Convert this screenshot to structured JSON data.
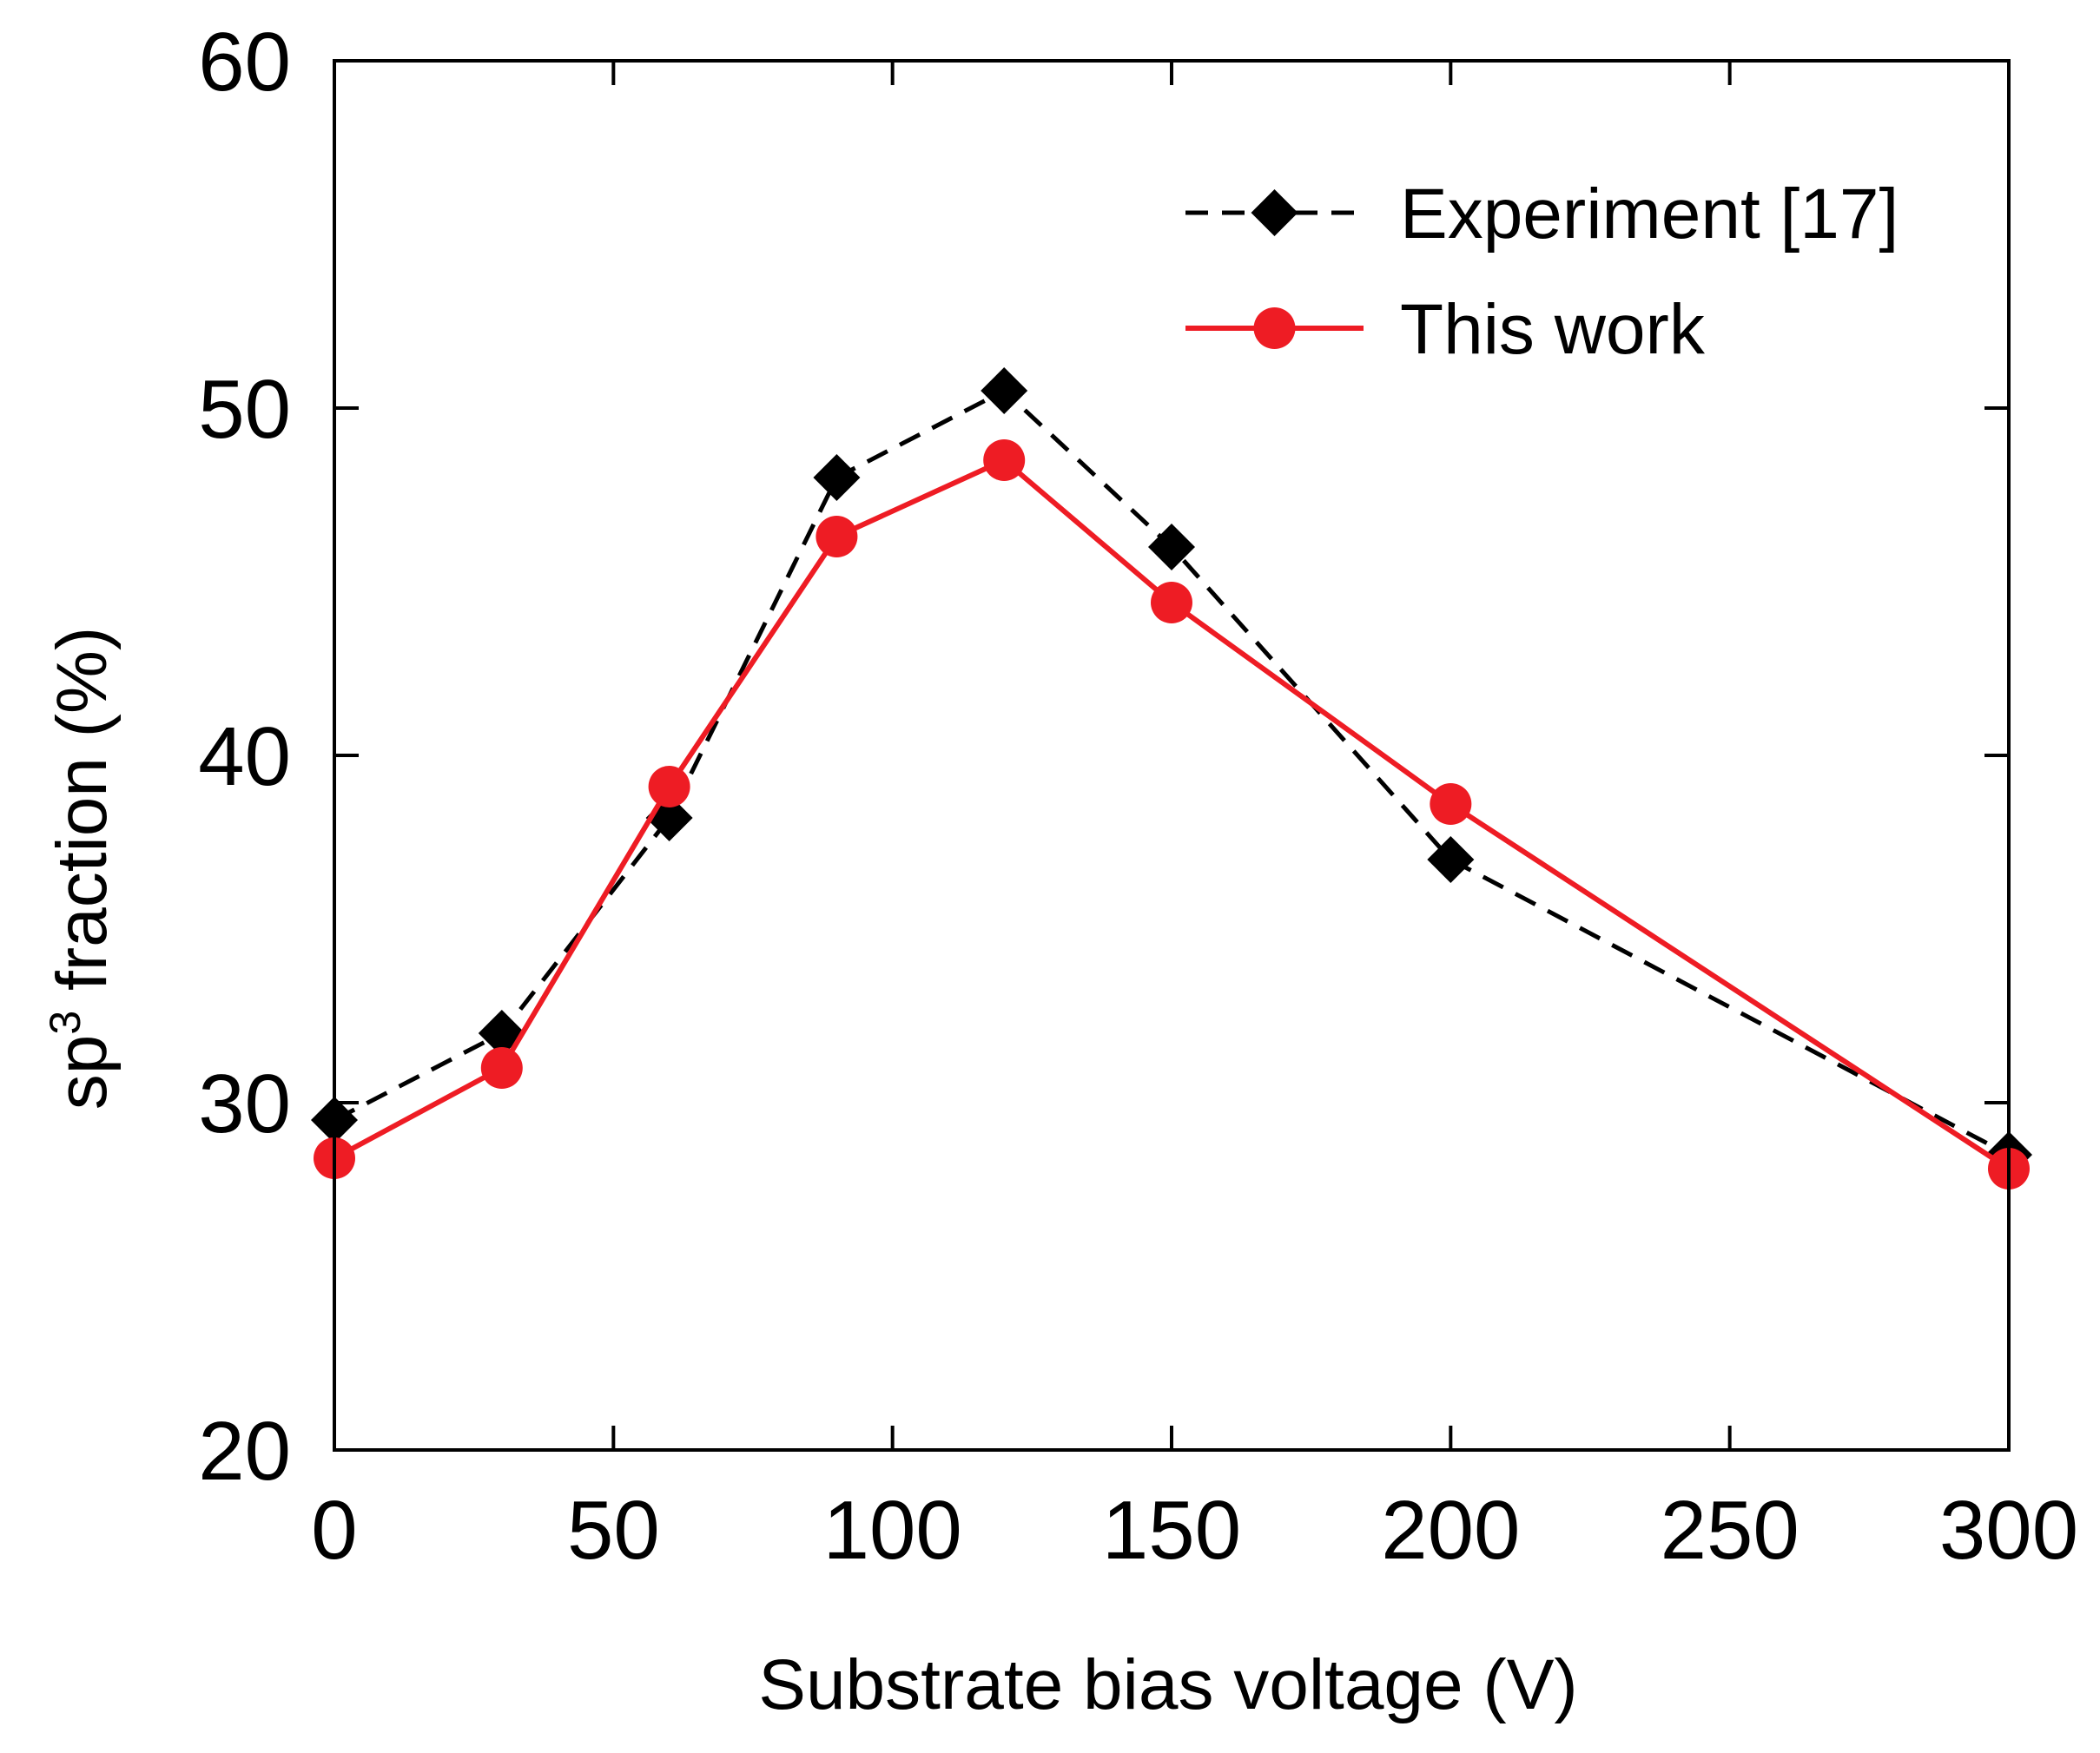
{
  "chart_data": {
    "type": "line",
    "title": "",
    "xlabel": "Substrate bias voltage (V)",
    "ylabel_main": "sp",
    "ylabel_superscript": "3",
    "ylabel_rest": " fraction (%)",
    "xlim": [
      0,
      300
    ],
    "ylim": [
      20,
      60
    ],
    "xticks": [
      0,
      50,
      100,
      150,
      200,
      250,
      300
    ],
    "yticks": [
      20,
      30,
      40,
      50,
      60
    ],
    "xtick_labels": [
      "0",
      "50",
      "100",
      "150",
      "200",
      "250",
      "300"
    ],
    "ytick_labels": [
      "20",
      "30",
      "40",
      "50",
      "60"
    ],
    "grid": false,
    "legend_position": "top-right",
    "series": [
      {
        "name": "Experiment [17]",
        "color": "#000000",
        "line_style": "dashed",
        "marker": "diamond",
        "x": [
          0,
          30,
          60,
          90,
          120,
          150,
          200,
          300
        ],
        "values": [
          29.5,
          32,
          38.2,
          48,
          50.5,
          46,
          37,
          28.5
        ]
      },
      {
        "name": "This work",
        "color": "#ee1c24",
        "line_style": "solid",
        "marker": "circle",
        "x": [
          0,
          30,
          60,
          90,
          120,
          150,
          200,
          300
        ],
        "values": [
          28.4,
          31,
          39.1,
          46.3,
          48.5,
          44.4,
          38.6,
          28.1
        ]
      }
    ]
  }
}
